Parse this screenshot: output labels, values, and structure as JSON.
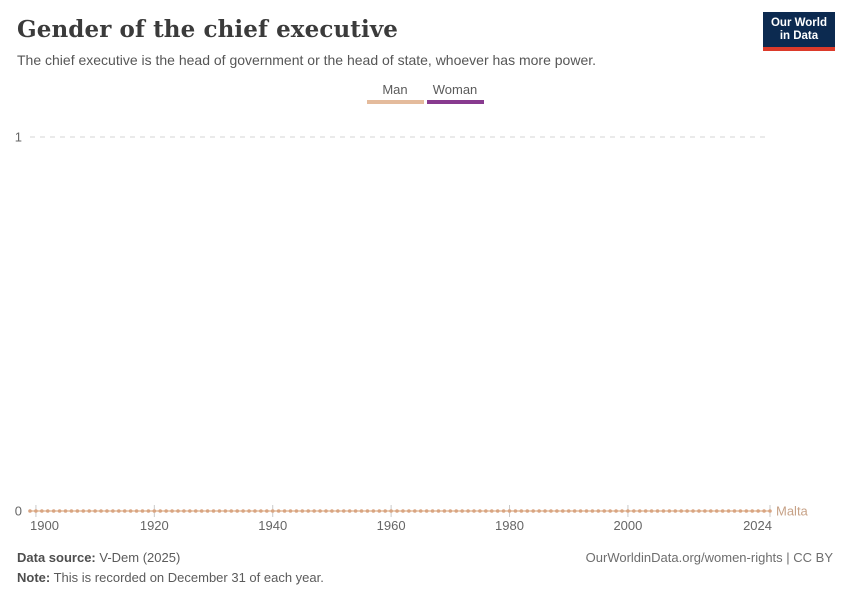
{
  "colors": {
    "navy": "#0c2a50",
    "red": "#dc3a2a",
    "title_color": "#3b3b3b",
    "subtitle_color": "#565656",
    "grid": "#d4d4d4",
    "tick": "#c9c9c9",
    "axis_text": "#666666",
    "footer_color": "#5b5b5b"
  },
  "header": {
    "title": "Gender of the chief executive",
    "subtitle": "The chief executive is the head of government or the head of state, whoever has more power.",
    "logo": {
      "line1": "Our World",
      "line2": "in Data"
    }
  },
  "legend": {
    "items": [
      {
        "label": "Man",
        "color": "#e4bb9c"
      },
      {
        "label": "Woman",
        "color": "#883a8f"
      }
    ]
  },
  "chart_data": {
    "type": "line",
    "title": "Gender of the chief executive",
    "subtitle": "The chief executive is the head of government or the head of state, whoever has more power.",
    "legend_entries": [
      "Man",
      "Woman"
    ],
    "legend_position": "top-center",
    "grid": "horizontal-dashed",
    "ylim": [
      0,
      1
    ],
    "yticks": [
      0,
      1
    ],
    "x_range": [
      1899,
      2024
    ],
    "xticks": [
      1900,
      1920,
      1940,
      1960,
      1980,
      2000,
      2024
    ],
    "series": [
      {
        "name": "Malta",
        "category": "Man",
        "x_start": 1899,
        "x_end": 2024,
        "value": 0,
        "marker": "circle",
        "dot_color": "#d9a582",
        "line_color": "#e3bd9e",
        "label_color": "#c7a287"
      }
    ]
  },
  "footer": {
    "source_label": "Data source:",
    "source_value": "V-Dem (2025)",
    "note_label": "Note:",
    "note_value": "This is recorded on December 31 of each year.",
    "right": "OurWorldinData.org/women-rights | CC BY"
  }
}
